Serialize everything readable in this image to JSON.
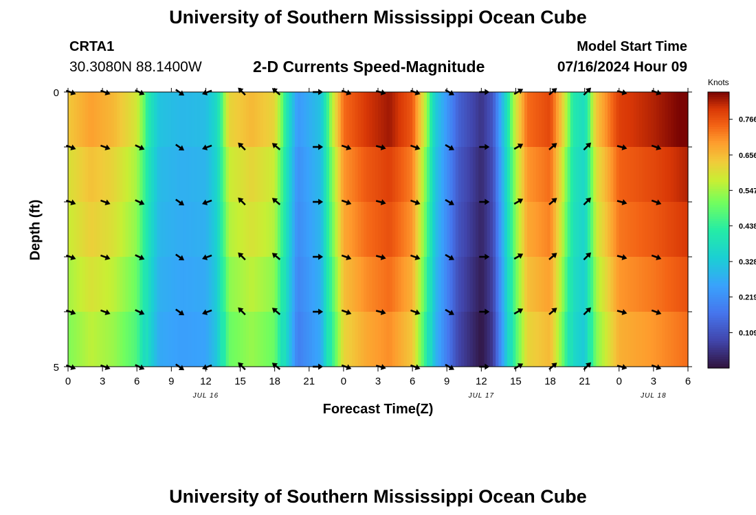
{
  "header": {
    "title": "University of Southern Mississippi Ocean Cube",
    "station": "CRTA1",
    "coords": "30.3080N  88.1400W",
    "subtitle": "2-D Currents Speed-Magnitude",
    "model_start_label": "Model Start Time",
    "model_start_value": "07/16/2024 Hour 09"
  },
  "footer": {
    "title": "University of Southern Mississippi Ocean Cube"
  },
  "chart_data": {
    "type": "heatmap",
    "title": "2-D Currents Speed-Magnitude",
    "xlabel": "Forecast Time(Z)",
    "ylabel": "Depth (ft)",
    "x_hours": [
      0,
      54
    ],
    "ylim": [
      0,
      5
    ],
    "x_tick_labels": [
      "0",
      "3",
      "6",
      "9",
      "12",
      "15",
      "18",
      "21",
      "0",
      "3",
      "6",
      "9",
      "12",
      "15",
      "18",
      "21",
      "0",
      "3",
      "6"
    ],
    "y_tick_labels": [
      "0",
      "5"
    ],
    "date_labels": [
      {
        "label": "JUL 16",
        "hour": 12
      },
      {
        "label": "JUL 17",
        "hour": 36
      },
      {
        "label": "JUL 18",
        "hour": 51
      }
    ],
    "colorbar": {
      "title": "Knots",
      "ticks": [
        "0.109",
        "0.219",
        "0.328",
        "0.438",
        "0.547",
        "0.656",
        "0.766"
      ],
      "tick_values": [
        0.109,
        0.219,
        0.328,
        0.438,
        0.547,
        0.656,
        0.766
      ],
      "range": [
        0,
        0.85
      ]
    },
    "depth_bins": 5,
    "speed_profile_knots": [
      [
        0,
        0.6
      ],
      [
        2,
        0.65
      ],
      [
        4,
        0.62
      ],
      [
        6,
        0.55
      ],
      [
        7,
        0.4
      ],
      [
        8,
        0.3
      ],
      [
        10,
        0.28
      ],
      [
        12,
        0.29
      ],
      [
        13,
        0.36
      ],
      [
        14,
        0.58
      ],
      [
        16,
        0.62
      ],
      [
        18,
        0.58
      ],
      [
        19,
        0.4
      ],
      [
        20,
        0.22
      ],
      [
        22,
        0.3
      ],
      [
        23,
        0.52
      ],
      [
        24,
        0.7
      ],
      [
        26,
        0.76
      ],
      [
        28,
        0.79
      ],
      [
        30,
        0.72
      ],
      [
        31,
        0.55
      ],
      [
        32,
        0.32
      ],
      [
        34,
        0.12
      ],
      [
        36,
        0.04
      ],
      [
        37,
        0.1
      ],
      [
        38,
        0.32
      ],
      [
        39,
        0.55
      ],
      [
        40,
        0.7
      ],
      [
        42,
        0.74
      ],
      [
        43,
        0.6
      ],
      [
        44,
        0.4
      ],
      [
        45,
        0.36
      ],
      [
        46,
        0.6
      ],
      [
        48,
        0.75
      ],
      [
        51,
        0.78
      ],
      [
        54,
        0.82
      ]
    ],
    "arrow_hours": [
      0,
      3,
      6,
      9.5,
      12,
      15,
      18,
      21.5,
      24,
      27,
      30,
      33,
      36,
      39,
      42,
      45,
      48,
      51
    ],
    "arrow_directions_deg": [
      -20,
      -20,
      -25,
      -35,
      200,
      135,
      140,
      0,
      -20,
      -15,
      -20,
      -30,
      0,
      30,
      40,
      45,
      -15,
      -20
    ]
  }
}
